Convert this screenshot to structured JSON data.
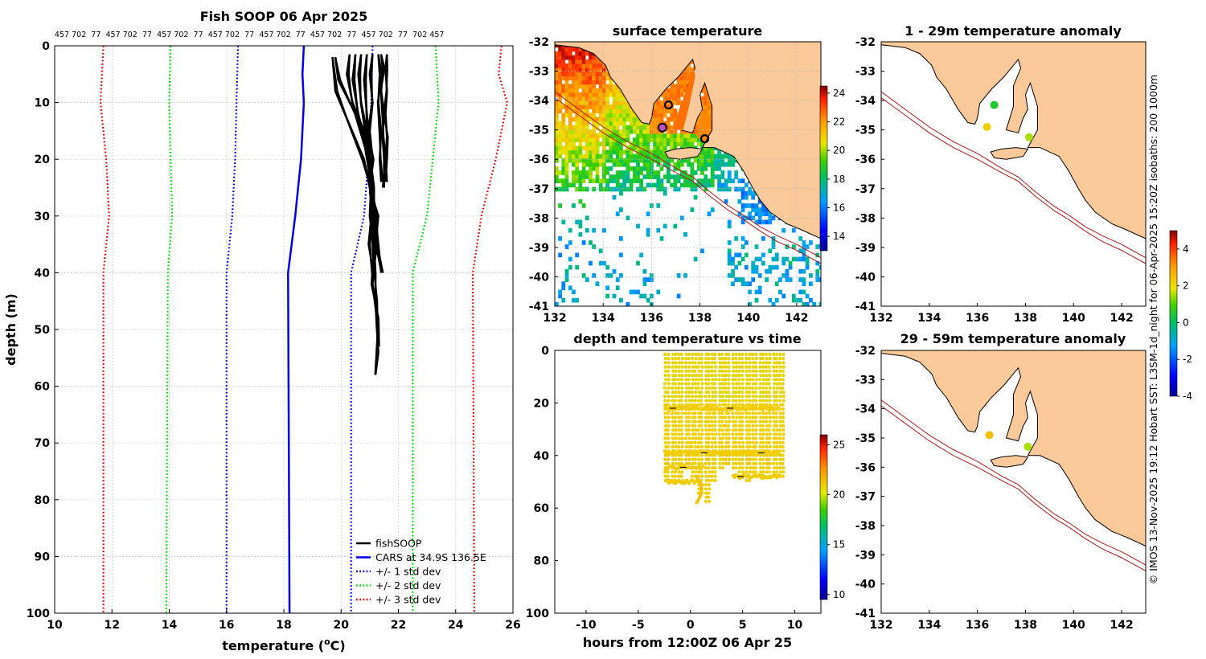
{
  "figure_title": "Fish SOOP 06 Apr 2025",
  "vessel_id_labels": [
    "457",
    "702",
    "77",
    "457",
    "702",
    "77",
    "457",
    "702",
    "77",
    "457",
    "702",
    "77",
    "457",
    "702",
    "77",
    "457",
    "702",
    "77",
    "457",
    "702",
    "77",
    "702",
    "457"
  ],
  "credit": "© IMOS 13-Nov-2025 19:12 Hobart SST: L3SM-1d_night for 06-Apr-2025 15:20Z isobaths: 200  1000m",
  "colors": {
    "fishsoop": "#000000",
    "cars": "#0000ee",
    "std1": "#0000ee",
    "std2": "#00dd00",
    "std3": "#ee0000",
    "land": "#f9c99a",
    "coast": "#000000",
    "isobath": "#aa1a1a"
  },
  "chart_data": [
    {
      "type": "line",
      "id": "profile",
      "title": "Fish SOOP 06 Apr 2025",
      "xlabel": "temperature (",
      "xlabel_sup": "o",
      "xlabel_suffix": "C)",
      "ylabel": "depth (m)",
      "xlim": [
        10,
        26
      ],
      "ylim": [
        100,
        0
      ],
      "xticks": [
        "10",
        "12",
        "14",
        "16",
        "18",
        "20",
        "22",
        "24",
        "26"
      ],
      "yticks": [
        "0",
        "10",
        "20",
        "30",
        "40",
        "50",
        "60",
        "70",
        "80",
        "90",
        "100"
      ],
      "grid": true,
      "legend_position": "bottom-right",
      "legend": [
        "fishSOOP",
        "CARS at 34.9S 136.5E",
        "+/- 1 std dev",
        "+/- 2 std dev",
        "+/- 3 std dev"
      ],
      "series": [
        {
          "name": "CARS at 34.9S 136.5E",
          "style": "solid",
          "color": "#0000ee",
          "depth": [
            0,
            5,
            10,
            20,
            30,
            40,
            100
          ],
          "temp": [
            18.7,
            18.65,
            18.7,
            18.6,
            18.4,
            18.15,
            18.2
          ]
        },
        {
          "name": "+1 std dev",
          "style": "dotted",
          "color": "#0000ee",
          "depth": [
            0,
            10,
            20,
            30,
            40,
            100
          ],
          "temp": [
            21.1,
            21.05,
            20.95,
            20.8,
            20.35,
            20.35
          ]
        },
        {
          "name": "-1 std dev",
          "style": "dotted",
          "color": "#0000ee",
          "depth": [
            0,
            10,
            20,
            30,
            40,
            100
          ],
          "temp": [
            16.4,
            16.35,
            16.3,
            16.2,
            16.0,
            16.0
          ]
        },
        {
          "name": "+2 std dev",
          "style": "dotted",
          "color": "#00dd00",
          "depth": [
            0,
            5,
            10,
            20,
            30,
            40,
            100
          ],
          "temp": [
            23.3,
            23.35,
            23.4,
            23.2,
            23.0,
            22.5,
            22.5
          ]
        },
        {
          "name": "-2 std dev",
          "style": "dotted",
          "color": "#00dd00",
          "depth": [
            0,
            10,
            20,
            30,
            40,
            100
          ],
          "temp": [
            14.05,
            14.0,
            14.05,
            14.1,
            13.95,
            13.9
          ]
        },
        {
          "name": "+3 std dev",
          "style": "dotted",
          "color": "#ee0000",
          "depth": [
            0,
            5,
            10,
            20,
            30,
            40,
            100
          ],
          "temp": [
            25.6,
            25.5,
            25.8,
            25.4,
            24.9,
            24.6,
            24.65
          ]
        },
        {
          "name": "-3 std dev",
          "style": "dotted",
          "color": "#ee0000",
          "depth": [
            0,
            10,
            20,
            30,
            40,
            100
          ],
          "temp": [
            11.7,
            11.6,
            11.8,
            11.9,
            11.7,
            11.7
          ]
        }
      ],
      "fishsoop_profiles": [
        {
          "depth": [
            2,
            8,
            14,
            20,
            25,
            30,
            35,
            40,
            45,
            50,
            54,
            58
          ],
          "temp": [
            19.7,
            19.8,
            20.3,
            20.8,
            21.0,
            21.1,
            21.15,
            21.2,
            21.2,
            21.25,
            21.3,
            21.2
          ]
        },
        {
          "depth": [
            2,
            6,
            12,
            18,
            24,
            30,
            36,
            42,
            48,
            53
          ],
          "temp": [
            19.8,
            19.9,
            20.5,
            20.9,
            21.0,
            21.15,
            21.2,
            21.1,
            21.25,
            21.3
          ]
        },
        {
          "depth": [
            1.5,
            5,
            10,
            15,
            20,
            25,
            30,
            35,
            40
          ],
          "temp": [
            20.3,
            20.2,
            20.4,
            20.8,
            21.0,
            21.1,
            21.2,
            21.3,
            21.4
          ]
        },
        {
          "depth": [
            1.5,
            6,
            12,
            18,
            24,
            30,
            36,
            40
          ],
          "temp": [
            20.5,
            20.4,
            20.6,
            20.9,
            21.0,
            21.2,
            21.3,
            21.45
          ]
        },
        {
          "depth": [
            1.5,
            5,
            10,
            15,
            20,
            25,
            30,
            35,
            41
          ],
          "temp": [
            20.7,
            20.6,
            20.7,
            20.9,
            21.0,
            21.05,
            21.1,
            21.0,
            21.1
          ]
        },
        {
          "depth": [
            1.5,
            6,
            12,
            18,
            24,
            30,
            36,
            41
          ],
          "temp": [
            20.9,
            20.8,
            20.9,
            21.0,
            21.05,
            21.0,
            21.15,
            21.2
          ]
        },
        {
          "depth": [
            1.5,
            5,
            10,
            15,
            20,
            23,
            26,
            30,
            35,
            40
          ],
          "temp": [
            21.1,
            21.0,
            21.1,
            21.0,
            21.1,
            21.0,
            21.05,
            21.3,
            21.2,
            21.1
          ]
        },
        {
          "depth": [
            1.5,
            4,
            8,
            12,
            16,
            20,
            25
          ],
          "temp": [
            21.4,
            21.45,
            21.4,
            21.5,
            21.45,
            21.5,
            21.5
          ]
        },
        {
          "depth": [
            1.5,
            4,
            8,
            12,
            16,
            20,
            24
          ],
          "temp": [
            21.6,
            21.55,
            21.6,
            21.55,
            21.6,
            21.55,
            21.6
          ]
        },
        {
          "depth": [
            1.5,
            5,
            10,
            15,
            20,
            24
          ],
          "temp": [
            21.3,
            21.35,
            21.3,
            21.4,
            21.35,
            21.4
          ]
        }
      ]
    },
    {
      "type": "heatmap",
      "id": "sst_map",
      "title": "surface temperature",
      "xlim": [
        132,
        143
      ],
      "ylim": [
        -41,
        -32
      ],
      "xticks": [
        "132",
        "134",
        "136",
        "138",
        "140",
        "142"
      ],
      "yticks": [
        "-32",
        "-33",
        "-34",
        "-35",
        "-36",
        "-37",
        "-38",
        "-39",
        "-40",
        "-41"
      ],
      "colorbar": {
        "range": [
          13,
          24.5
        ],
        "ticks": [
          "14",
          "16",
          "18",
          "20",
          "22",
          "24"
        ]
      }
    },
    {
      "type": "scatter",
      "id": "depth_time",
      "title": "depth and temperature vs time",
      "xlabel": "hours from 12:00Z 06 Apr 25",
      "xlim": [
        -13,
        12.5
      ],
      "ylim": [
        100,
        0
      ],
      "xticks": [
        "-10",
        "-5",
        "0",
        "5",
        "10"
      ],
      "yticks": [
        "0",
        "20",
        "40",
        "60",
        "80",
        "100"
      ],
      "colorbar": {
        "range": [
          9.5,
          26
        ],
        "ticks": [
          "10",
          "15",
          "20",
          "25"
        ]
      },
      "casts_hours": [
        -2.4,
        -1.7,
        -1.1,
        -0.4,
        0.2,
        0.8,
        1.5,
        2.1,
        2.8,
        3.4,
        4.1,
        4.7,
        5.4,
        6.0,
        6.7,
        7.3,
        8.0,
        8.6
      ],
      "bottom_depths": [
        50,
        50,
        48,
        46,
        48,
        55,
        58,
        50,
        46,
        44,
        45,
        48,
        50,
        49,
        48,
        47,
        48,
        48
      ]
    },
    {
      "type": "scatter",
      "id": "anomaly_shallow",
      "title": "1 - 29m temperature anomaly",
      "xlim": [
        132,
        143
      ],
      "ylim": [
        -41,
        -32
      ],
      "xticks": [
        "132",
        "134",
        "136",
        "138",
        "140",
        "142"
      ],
      "yticks": [
        "-32",
        "-33",
        "-34",
        "-35",
        "-36",
        "-37",
        "-38",
        "-39",
        "-40",
        "-41"
      ],
      "points": [
        {
          "lon": 136.7,
          "lat": -34.15,
          "anomaly": 0.5
        },
        {
          "lon": 136.4,
          "lat": -34.9,
          "anomaly": 2.2
        },
        {
          "lon": 138.15,
          "lat": -35.25,
          "anomaly": 1.5
        }
      ]
    },
    {
      "type": "scatter",
      "id": "anomaly_deep",
      "title": "29 - 59m temperature anomaly",
      "xlim": [
        132,
        143
      ],
      "ylim": [
        -41,
        -32
      ],
      "xticks": [
        "132",
        "134",
        "136",
        "138",
        "140",
        "142"
      ],
      "yticks": [
        "-32",
        "-33",
        "-34",
        "-35",
        "-36",
        "-37",
        "-38",
        "-39",
        "-40",
        "-41"
      ],
      "colorbar": {
        "range": [
          -4,
          5
        ],
        "ticks": [
          "-4",
          "-2",
          "0",
          "2",
          "4"
        ]
      },
      "points": [
        {
          "lon": 136.5,
          "lat": -34.9,
          "anomaly": 2.5
        },
        {
          "lon": 138.1,
          "lat": -35.3,
          "anomaly": 1.5
        }
      ]
    }
  ]
}
